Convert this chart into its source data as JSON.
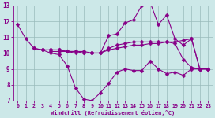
{
  "xlabel": "Windchill (Refroidissement éolien,°C)",
  "bg_color": "#cce8e8",
  "line_color": "#880088",
  "grid_color": "#99bbbb",
  "xlim": [
    -0.5,
    23.5
  ],
  "ylim": [
    7,
    13
  ],
  "yticks": [
    7,
    8,
    9,
    10,
    11,
    12,
    13
  ],
  "xticks": [
    0,
    1,
    2,
    3,
    4,
    5,
    6,
    7,
    8,
    9,
    10,
    11,
    12,
    13,
    14,
    15,
    16,
    17,
    18,
    19,
    20,
    21,
    22,
    23
  ],
  "lines": [
    [
      11.8,
      10.9,
      10.3,
      10.2,
      10.0,
      9.9,
      9.2,
      7.8,
      7.1,
      7.0,
      7.5,
      8.1,
      8.8,
      9.0,
      8.9,
      8.9,
      9.5,
      9.0,
      8.7,
      8.8,
      8.6,
      9.0,
      9.0,
      9.0
    ],
    [
      null,
      null,
      10.3,
      10.2,
      10.2,
      10.2,
      10.1,
      10.1,
      10.1,
      10.0,
      10.0,
      11.1,
      11.2,
      11.9,
      12.1,
      13.0,
      13.2,
      11.8,
      12.4,
      10.9,
      10.5,
      10.9,
      9.0,
      9.0
    ],
    [
      null,
      null,
      null,
      10.2,
      10.2,
      10.2,
      10.1,
      10.1,
      10.0,
      10.0,
      10.0,
      10.3,
      10.5,
      10.6,
      10.7,
      10.7,
      10.7,
      10.7,
      10.7,
      10.6,
      9.6,
      9.1,
      9.0,
      9.0
    ],
    [
      null,
      null,
      null,
      null,
      10.1,
      10.1,
      10.1,
      10.0,
      10.0,
      10.0,
      10.0,
      10.2,
      10.3,
      10.4,
      10.5,
      10.5,
      10.6,
      10.6,
      10.7,
      10.7,
      10.8,
      10.9,
      9.0,
      9.0
    ]
  ],
  "markersize": 2.5,
  "linewidth": 0.8
}
